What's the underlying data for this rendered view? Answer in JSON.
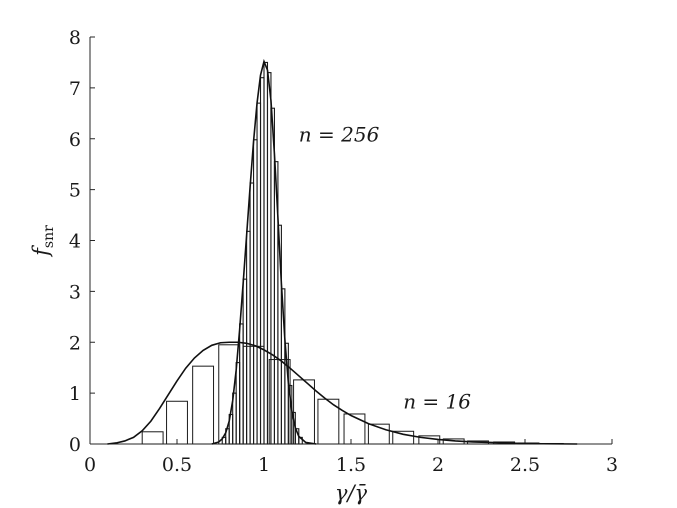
{
  "chart_data": {
    "type": "bar",
    "xlabel": "γ/γ̄",
    "ylabel_main": "f",
    "ylabel_sub": "snr",
    "xlim": [
      0,
      3
    ],
    "ylim": [
      0,
      8
    ],
    "xticks": [
      "0",
      "0.5",
      "1",
      "1.5",
      "2",
      "2.5",
      "3"
    ],
    "yticks": [
      "0",
      "1",
      "2",
      "3",
      "4",
      "5",
      "6",
      "7",
      "8"
    ],
    "grid": false,
    "annotations": [
      {
        "text": "n = 256",
        "x": 1.2,
        "y": 5.95
      },
      {
        "text": "n = 16",
        "x": 1.8,
        "y": 0.7
      }
    ],
    "series": [
      {
        "name": "n = 16",
        "bin_width": 0.12,
        "bins": [
          {
            "x0": 0.3,
            "value": 0.24
          },
          {
            "x0": 0.44,
            "value": 0.84
          },
          {
            "x0": 0.59,
            "value": 1.53
          },
          {
            "x0": 0.74,
            "value": 1.95
          },
          {
            "x0": 0.88,
            "value": 1.92
          },
          {
            "x0": 1.03,
            "value": 1.66
          },
          {
            "x0": 1.17,
            "value": 1.26
          },
          {
            "x0": 1.31,
            "value": 0.88
          },
          {
            "x0": 1.46,
            "value": 0.59
          },
          {
            "x0": 1.6,
            "value": 0.39
          },
          {
            "x0": 1.74,
            "value": 0.25
          },
          {
            "x0": 1.89,
            "value": 0.16
          },
          {
            "x0": 2.03,
            "value": 0.1
          },
          {
            "x0": 2.17,
            "value": 0.06
          },
          {
            "x0": 2.32,
            "value": 0.04
          },
          {
            "x0": 2.46,
            "value": 0.02
          },
          {
            "x0": 2.6,
            "value": 0.01
          }
        ]
      },
      {
        "name": "n = 256",
        "bin_width": 0.02,
        "bins": [
          {
            "x0": 0.76,
            "value": 0.13
          },
          {
            "x0": 0.78,
            "value": 0.3
          },
          {
            "x0": 0.8,
            "value": 0.58
          },
          {
            "x0": 0.82,
            "value": 1.0
          },
          {
            "x0": 0.84,
            "value": 1.6
          },
          {
            "x0": 0.86,
            "value": 2.36
          },
          {
            "x0": 0.88,
            "value": 3.24
          },
          {
            "x0": 0.9,
            "value": 4.18
          },
          {
            "x0": 0.92,
            "value": 5.13
          },
          {
            "x0": 0.94,
            "value": 5.98
          },
          {
            "x0": 0.96,
            "value": 6.7
          },
          {
            "x0": 0.98,
            "value": 7.2
          },
          {
            "x0": 1.0,
            "value": 7.5
          },
          {
            "x0": 1.02,
            "value": 7.3
          },
          {
            "x0": 1.04,
            "value": 6.6
          },
          {
            "x0": 1.06,
            "value": 5.55
          },
          {
            "x0": 1.08,
            "value": 4.3
          },
          {
            "x0": 1.1,
            "value": 3.05
          },
          {
            "x0": 1.12,
            "value": 1.98
          },
          {
            "x0": 1.14,
            "value": 1.15
          },
          {
            "x0": 1.16,
            "value": 0.62
          },
          {
            "x0": 1.18,
            "value": 0.3
          },
          {
            "x0": 1.2,
            "value": 0.13
          }
        ]
      }
    ],
    "curves": [
      {
        "name": "n = 16",
        "points": [
          [
            0.1,
            0.0
          ],
          [
            0.15,
            0.02
          ],
          [
            0.2,
            0.06
          ],
          [
            0.25,
            0.13
          ],
          [
            0.3,
            0.26
          ],
          [
            0.35,
            0.45
          ],
          [
            0.4,
            0.7
          ],
          [
            0.45,
            0.97
          ],
          [
            0.5,
            1.24
          ],
          [
            0.55,
            1.49
          ],
          [
            0.6,
            1.69
          ],
          [
            0.65,
            1.84
          ],
          [
            0.7,
            1.94
          ],
          [
            0.75,
            1.99
          ],
          [
            0.8,
            2.0
          ],
          [
            0.85,
            2.0
          ],
          [
            0.9,
            1.98
          ],
          [
            0.95,
            1.93
          ],
          [
            1.0,
            1.85
          ],
          [
            1.05,
            1.75
          ],
          [
            1.1,
            1.63
          ],
          [
            1.15,
            1.49
          ],
          [
            1.2,
            1.34
          ],
          [
            1.25,
            1.19
          ],
          [
            1.3,
            1.04
          ],
          [
            1.35,
            0.9
          ],
          [
            1.4,
            0.77
          ],
          [
            1.45,
            0.66
          ],
          [
            1.5,
            0.56
          ],
          [
            1.6,
            0.4
          ],
          [
            1.7,
            0.28
          ],
          [
            1.8,
            0.19
          ],
          [
            1.9,
            0.13
          ],
          [
            2.0,
            0.09
          ],
          [
            2.1,
            0.06
          ],
          [
            2.2,
            0.04
          ],
          [
            2.3,
            0.03
          ],
          [
            2.4,
            0.02
          ],
          [
            2.5,
            0.01
          ],
          [
            2.6,
            0.005
          ],
          [
            2.8,
            0.0
          ]
        ]
      },
      {
        "name": "n = 256",
        "points": [
          [
            0.7,
            0.0
          ],
          [
            0.74,
            0.04
          ],
          [
            0.76,
            0.1
          ],
          [
            0.78,
            0.22
          ],
          [
            0.8,
            0.45
          ],
          [
            0.82,
            0.85
          ],
          [
            0.84,
            1.45
          ],
          [
            0.86,
            2.25
          ],
          [
            0.88,
            3.15
          ],
          [
            0.9,
            4.1
          ],
          [
            0.92,
            5.05
          ],
          [
            0.94,
            5.95
          ],
          [
            0.96,
            6.7
          ],
          [
            0.98,
            7.25
          ],
          [
            1.0,
            7.52
          ],
          [
            1.02,
            7.35
          ],
          [
            1.04,
            6.75
          ],
          [
            1.06,
            5.7
          ],
          [
            1.08,
            4.45
          ],
          [
            1.1,
            3.15
          ],
          [
            1.12,
            2.05
          ],
          [
            1.14,
            1.2
          ],
          [
            1.16,
            0.65
          ],
          [
            1.18,
            0.32
          ],
          [
            1.2,
            0.15
          ],
          [
            1.24,
            0.03
          ],
          [
            1.3,
            0.0
          ]
        ]
      }
    ]
  }
}
